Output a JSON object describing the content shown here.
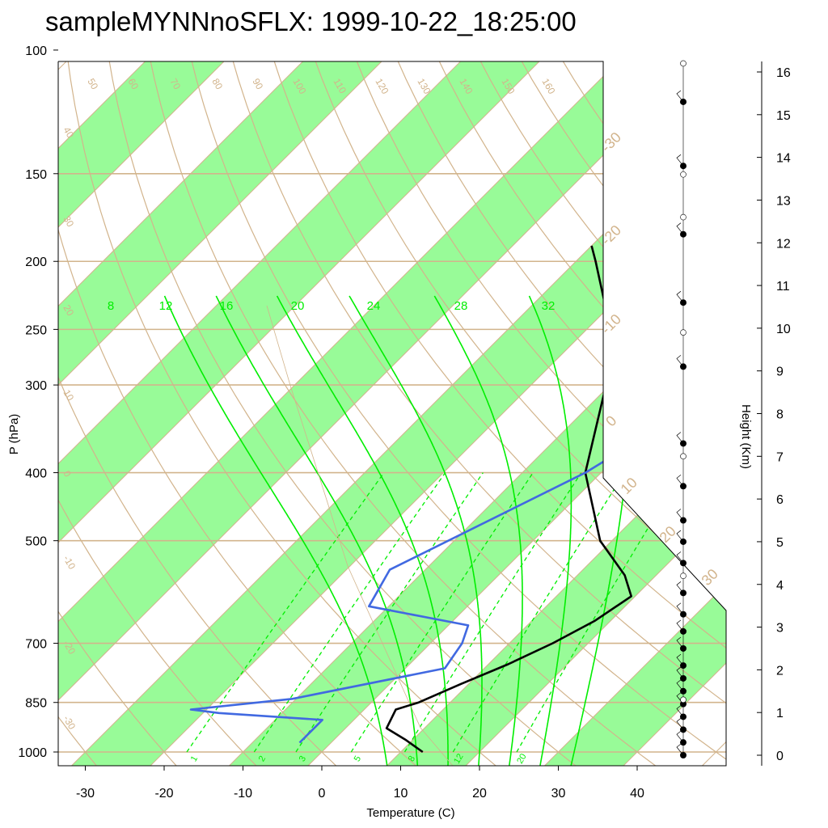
{
  "title": "sampleMYNNnoSFLX: 1999-10-22_18:25:00",
  "chart_data": {
    "type": "line",
    "title": "sampleMYNNnoSFLX: 1999-10-22_18:25:00",
    "xlabel": "Temperature (C)",
    "ylabel": "P (hPa)",
    "y2label": "Height (Km)",
    "x_ticks": [
      -30,
      -20,
      -10,
      0,
      10,
      20,
      30,
      40
    ],
    "p_ticks": [
      100,
      150,
      200,
      250,
      300,
      400,
      500,
      700,
      850,
      1000
    ],
    "height_ticks": [
      0,
      1,
      2,
      3,
      4,
      5,
      6,
      7,
      8,
      9,
      10,
      11,
      12,
      13,
      14,
      15,
      16
    ],
    "isotherm_labels": [
      -30,
      -20,
      -10,
      0,
      10,
      20,
      30
    ],
    "dry_adiabat_labels": [
      -30,
      -20,
      -10,
      0,
      10,
      20,
      30,
      40,
      50,
      60,
      70,
      80,
      90,
      100,
      110,
      120,
      130,
      140,
      150,
      160
    ],
    "moist_adiabat_labels": [
      8,
      12,
      16,
      20,
      24,
      28,
      32
    ],
    "mixing_ratio_labels": [
      1,
      2,
      3,
      5,
      8,
      12,
      20
    ],
    "series": [
      {
        "name": "temperature",
        "color": "#000000",
        "points": [
          [
            1000,
            12.8
          ],
          [
            960,
            9.0
          ],
          [
            925,
            5.2
          ],
          [
            870,
            4.0
          ],
          [
            850,
            6.0
          ],
          [
            800,
            9.0
          ],
          [
            750,
            12.5
          ],
          [
            700,
            15.5
          ],
          [
            650,
            18.0
          ],
          [
            600,
            19.5
          ],
          [
            560,
            16.0
          ],
          [
            500,
            8.5
          ],
          [
            400,
            -2.0
          ],
          [
            300,
            -10.5
          ],
          [
            250,
            -17.0
          ],
          [
            200,
            -27.5
          ],
          [
            190,
            -30.0
          ]
        ]
      },
      {
        "name": "dewpoint",
        "color": "#4169e1",
        "points": [
          [
            970,
            -4.0
          ],
          [
            900,
            -4.0
          ],
          [
            880,
            -18.0
          ],
          [
            870,
            -22.0
          ],
          [
            840,
            -10.5
          ],
          [
            760,
            5.0
          ],
          [
            700,
            4.0
          ],
          [
            660,
            2.5
          ],
          [
            620,
            -12.5
          ],
          [
            550,
            -14.5
          ],
          [
            400,
            -2.0
          ],
          [
            340,
            2.0
          ],
          [
            300,
            5.5
          ],
          [
            250,
            8.0
          ],
          [
            220,
            9.5
          ],
          [
            195,
            11.0
          ]
        ]
      }
    ],
    "wind_profile_heights_km": [
      0,
      0.3,
      0.6,
      0.9,
      1.2,
      1.5,
      1.8,
      2.1,
      2.5,
      2.9,
      3.3,
      3.8,
      4.5,
      5.0,
      5.5,
      6.3,
      7.3,
      9.1,
      10.6,
      12.2,
      13.8,
      15.3
    ]
  }
}
